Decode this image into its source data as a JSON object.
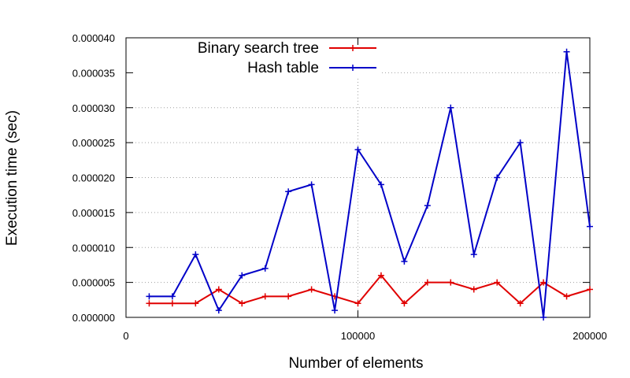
{
  "chart_data": {
    "type": "line",
    "xlabel": "Number of elements",
    "ylabel": "Execution time (sec)",
    "xlim": [
      0,
      200000
    ],
    "ylim": [
      0,
      4e-05
    ],
    "x_ticks": [
      0,
      100000,
      200000
    ],
    "x_tick_labels": [
      "0",
      "100000",
      "200000"
    ],
    "y_ticks": [
      0,
      5e-06,
      1e-05,
      1.5e-05,
      2e-05,
      2.5e-05,
      3e-05,
      3.5e-05,
      4e-05
    ],
    "y_tick_labels": [
      "0.000000",
      "0.000005",
      "0.000010",
      "0.000015",
      "0.000020",
      "0.000025",
      "0.000030",
      "0.000035",
      "0.000040"
    ],
    "grid": true,
    "legend_position": "top-center",
    "x": [
      10000,
      20000,
      30000,
      40000,
      50000,
      60000,
      70000,
      80000,
      90000,
      100000,
      110000,
      120000,
      130000,
      140000,
      150000,
      160000,
      170000,
      180000,
      190000,
      200000
    ],
    "series": [
      {
        "name": "Binary search tree",
        "color": "#e00000",
        "values": [
          2e-06,
          2e-06,
          2e-06,
          4e-06,
          2e-06,
          3e-06,
          3e-06,
          4e-06,
          3e-06,
          2e-06,
          6e-06,
          2e-06,
          5e-06,
          5e-06,
          4e-06,
          5e-06,
          2e-06,
          5e-06,
          3e-06,
          4e-06
        ]
      },
      {
        "name": "Hash table",
        "color": "#0000c8",
        "values": [
          3e-06,
          3e-06,
          9e-06,
          1e-06,
          6e-06,
          7e-06,
          1.8e-05,
          1.9e-05,
          1e-06,
          2.4e-05,
          1.9e-05,
          8e-06,
          1.6e-05,
          3e-05,
          9e-06,
          2e-05,
          2.5e-05,
          0.0,
          3.8e-05,
          1.3e-05
        ]
      }
    ]
  }
}
